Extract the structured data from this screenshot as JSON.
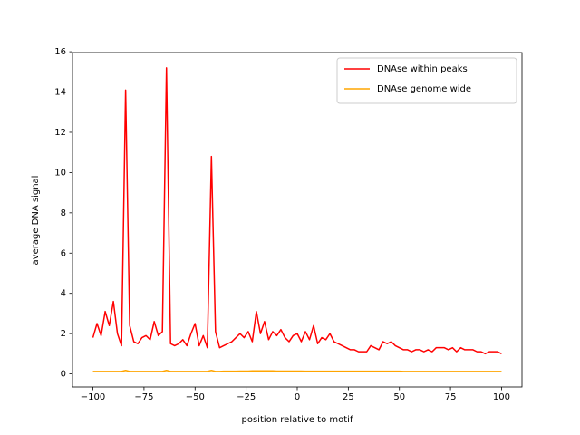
{
  "chart_data": {
    "type": "line",
    "xlabel": "position relative to motif",
    "ylabel": "average DNA signal",
    "x": [
      -100,
      -98,
      -96,
      -94,
      -92,
      -90,
      -88,
      -86,
      -84,
      -82,
      -80,
      -78,
      -76,
      -74,
      -72,
      -70,
      -68,
      -66,
      -64,
      -62,
      -60,
      -58,
      -56,
      -54,
      -52,
      -50,
      -48,
      -46,
      -44,
      -42,
      -40,
      -38,
      -36,
      -34,
      -32,
      -30,
      -28,
      -26,
      -24,
      -22,
      -20,
      -18,
      -16,
      -14,
      -12,
      -10,
      -8,
      -6,
      -4,
      -2,
      0,
      2,
      4,
      6,
      8,
      10,
      12,
      14,
      16,
      18,
      20,
      22,
      24,
      26,
      28,
      30,
      32,
      34,
      36,
      38,
      40,
      42,
      44,
      46,
      48,
      50,
      52,
      54,
      56,
      58,
      60,
      62,
      64,
      66,
      68,
      70,
      72,
      74,
      76,
      78,
      80,
      82,
      84,
      86,
      88,
      90,
      92,
      94,
      96,
      98,
      100
    ],
    "series": [
      {
        "name": "DNAse within peaks",
        "color": "#ff0000",
        "values": [
          1.8,
          2.5,
          1.9,
          3.1,
          2.4,
          3.6,
          2.0,
          1.4,
          14.1,
          2.4,
          1.6,
          1.5,
          1.8,
          1.9,
          1.7,
          2.6,
          1.9,
          2.1,
          15.2,
          1.5,
          1.4,
          1.5,
          1.7,
          1.4,
          2.0,
          2.5,
          1.4,
          1.9,
          1.3,
          10.8,
          2.1,
          1.3,
          1.4,
          1.5,
          1.6,
          1.8,
          2.0,
          1.8,
          2.1,
          1.6,
          3.1,
          2.0,
          2.6,
          1.7,
          2.1,
          1.9,
          2.2,
          1.8,
          1.6,
          1.9,
          2.0,
          1.6,
          2.1,
          1.7,
          2.4,
          1.5,
          1.8,
          1.7,
          2.0,
          1.6,
          1.5,
          1.4,
          1.3,
          1.2,
          1.2,
          1.1,
          1.1,
          1.1,
          1.4,
          1.3,
          1.2,
          1.6,
          1.5,
          1.6,
          1.4,
          1.3,
          1.2,
          1.2,
          1.1,
          1.2,
          1.2,
          1.1,
          1.2,
          1.1,
          1.3,
          1.3,
          1.3,
          1.2,
          1.3,
          1.1,
          1.3,
          1.2,
          1.2,
          1.2,
          1.1,
          1.1,
          1.0,
          1.1,
          1.1,
          1.1,
          1.0
        ]
      },
      {
        "name": "DNAse genome wide",
        "color": "#ffa500",
        "values": [
          0.12,
          0.12,
          0.12,
          0.12,
          0.12,
          0.12,
          0.12,
          0.12,
          0.17,
          0.12,
          0.12,
          0.12,
          0.12,
          0.12,
          0.12,
          0.12,
          0.12,
          0.12,
          0.17,
          0.12,
          0.12,
          0.12,
          0.12,
          0.12,
          0.12,
          0.12,
          0.12,
          0.12,
          0.12,
          0.17,
          0.12,
          0.12,
          0.13,
          0.13,
          0.13,
          0.13,
          0.14,
          0.14,
          0.14,
          0.15,
          0.15,
          0.15,
          0.15,
          0.15,
          0.15,
          0.14,
          0.14,
          0.14,
          0.14,
          0.14,
          0.14,
          0.14,
          0.13,
          0.13,
          0.13,
          0.13,
          0.13,
          0.13,
          0.13,
          0.13,
          0.13,
          0.13,
          0.13,
          0.13,
          0.13,
          0.13,
          0.13,
          0.13,
          0.13,
          0.13,
          0.13,
          0.13,
          0.13,
          0.13,
          0.13,
          0.13,
          0.12,
          0.12,
          0.12,
          0.12,
          0.12,
          0.12,
          0.12,
          0.12,
          0.12,
          0.12,
          0.12,
          0.12,
          0.12,
          0.12,
          0.12,
          0.12,
          0.12,
          0.12,
          0.12,
          0.12,
          0.12,
          0.12,
          0.12,
          0.12,
          0.12
        ]
      }
    ],
    "xlim": [
      -110,
      110
    ],
    "ylim": [
      -0.65,
      15.96
    ],
    "xticks": [
      {
        "value": -100,
        "label": "−100"
      },
      {
        "value": -75,
        "label": "−75"
      },
      {
        "value": -50,
        "label": "−50"
      },
      {
        "value": -25,
        "label": "−25"
      },
      0,
      25,
      50,
      75,
      100
    ],
    "yticks": [
      0,
      2,
      4,
      6,
      8,
      10,
      12,
      14,
      16
    ],
    "legend": "upper right",
    "grid": false
  }
}
